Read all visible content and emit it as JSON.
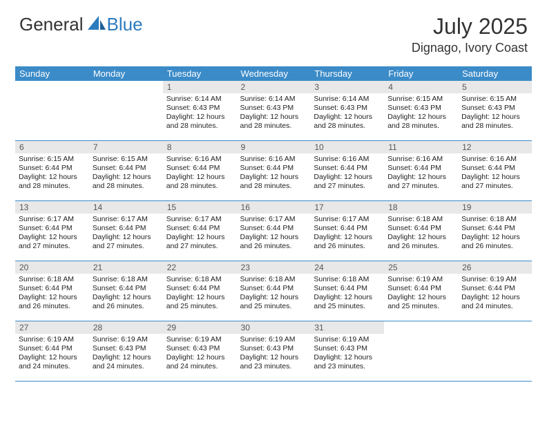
{
  "logo": {
    "text_general": "General",
    "text_blue": "Blue"
  },
  "title": "July 2025",
  "location": "Dignago, Ivory Coast",
  "colors": {
    "header_bg": "#3b8bc8",
    "header_text": "#ffffff",
    "daynum_bg": "#e8e8e8",
    "daynum_text": "#555555",
    "row_divider": "#3b8bc8",
    "logo_blue": "#2b7bbf",
    "body_text": "#222222",
    "page_bg": "#ffffff"
  },
  "typography": {
    "title_fontsize": 32,
    "location_fontsize": 18,
    "header_fontsize": 13,
    "daynum_fontsize": 12,
    "cell_fontsize": 10.5
  },
  "day_headers": [
    "Sunday",
    "Monday",
    "Tuesday",
    "Wednesday",
    "Thursday",
    "Friday",
    "Saturday"
  ],
  "weeks": [
    [
      {
        "blank": true
      },
      {
        "blank": true
      },
      {
        "num": "1",
        "sunrise": "Sunrise: 6:14 AM",
        "sunset": "Sunset: 6:43 PM",
        "daylight": "Daylight: 12 hours and 28 minutes."
      },
      {
        "num": "2",
        "sunrise": "Sunrise: 6:14 AM",
        "sunset": "Sunset: 6:43 PM",
        "daylight": "Daylight: 12 hours and 28 minutes."
      },
      {
        "num": "3",
        "sunrise": "Sunrise: 6:14 AM",
        "sunset": "Sunset: 6:43 PM",
        "daylight": "Daylight: 12 hours and 28 minutes."
      },
      {
        "num": "4",
        "sunrise": "Sunrise: 6:15 AM",
        "sunset": "Sunset: 6:43 PM",
        "daylight": "Daylight: 12 hours and 28 minutes."
      },
      {
        "num": "5",
        "sunrise": "Sunrise: 6:15 AM",
        "sunset": "Sunset: 6:43 PM",
        "daylight": "Daylight: 12 hours and 28 minutes."
      }
    ],
    [
      {
        "num": "6",
        "sunrise": "Sunrise: 6:15 AM",
        "sunset": "Sunset: 6:44 PM",
        "daylight": "Daylight: 12 hours and 28 minutes."
      },
      {
        "num": "7",
        "sunrise": "Sunrise: 6:15 AM",
        "sunset": "Sunset: 6:44 PM",
        "daylight": "Daylight: 12 hours and 28 minutes."
      },
      {
        "num": "8",
        "sunrise": "Sunrise: 6:16 AM",
        "sunset": "Sunset: 6:44 PM",
        "daylight": "Daylight: 12 hours and 28 minutes."
      },
      {
        "num": "9",
        "sunrise": "Sunrise: 6:16 AM",
        "sunset": "Sunset: 6:44 PM",
        "daylight": "Daylight: 12 hours and 28 minutes."
      },
      {
        "num": "10",
        "sunrise": "Sunrise: 6:16 AM",
        "sunset": "Sunset: 6:44 PM",
        "daylight": "Daylight: 12 hours and 27 minutes."
      },
      {
        "num": "11",
        "sunrise": "Sunrise: 6:16 AM",
        "sunset": "Sunset: 6:44 PM",
        "daylight": "Daylight: 12 hours and 27 minutes."
      },
      {
        "num": "12",
        "sunrise": "Sunrise: 6:16 AM",
        "sunset": "Sunset: 6:44 PM",
        "daylight": "Daylight: 12 hours and 27 minutes."
      }
    ],
    [
      {
        "num": "13",
        "sunrise": "Sunrise: 6:17 AM",
        "sunset": "Sunset: 6:44 PM",
        "daylight": "Daylight: 12 hours and 27 minutes."
      },
      {
        "num": "14",
        "sunrise": "Sunrise: 6:17 AM",
        "sunset": "Sunset: 6:44 PM",
        "daylight": "Daylight: 12 hours and 27 minutes."
      },
      {
        "num": "15",
        "sunrise": "Sunrise: 6:17 AM",
        "sunset": "Sunset: 6:44 PM",
        "daylight": "Daylight: 12 hours and 27 minutes."
      },
      {
        "num": "16",
        "sunrise": "Sunrise: 6:17 AM",
        "sunset": "Sunset: 6:44 PM",
        "daylight": "Daylight: 12 hours and 26 minutes."
      },
      {
        "num": "17",
        "sunrise": "Sunrise: 6:17 AM",
        "sunset": "Sunset: 6:44 PM",
        "daylight": "Daylight: 12 hours and 26 minutes."
      },
      {
        "num": "18",
        "sunrise": "Sunrise: 6:18 AM",
        "sunset": "Sunset: 6:44 PM",
        "daylight": "Daylight: 12 hours and 26 minutes."
      },
      {
        "num": "19",
        "sunrise": "Sunrise: 6:18 AM",
        "sunset": "Sunset: 6:44 PM",
        "daylight": "Daylight: 12 hours and 26 minutes."
      }
    ],
    [
      {
        "num": "20",
        "sunrise": "Sunrise: 6:18 AM",
        "sunset": "Sunset: 6:44 PM",
        "daylight": "Daylight: 12 hours and 26 minutes."
      },
      {
        "num": "21",
        "sunrise": "Sunrise: 6:18 AM",
        "sunset": "Sunset: 6:44 PM",
        "daylight": "Daylight: 12 hours and 26 minutes."
      },
      {
        "num": "22",
        "sunrise": "Sunrise: 6:18 AM",
        "sunset": "Sunset: 6:44 PM",
        "daylight": "Daylight: 12 hours and 25 minutes."
      },
      {
        "num": "23",
        "sunrise": "Sunrise: 6:18 AM",
        "sunset": "Sunset: 6:44 PM",
        "daylight": "Daylight: 12 hours and 25 minutes."
      },
      {
        "num": "24",
        "sunrise": "Sunrise: 6:18 AM",
        "sunset": "Sunset: 6:44 PM",
        "daylight": "Daylight: 12 hours and 25 minutes."
      },
      {
        "num": "25",
        "sunrise": "Sunrise: 6:19 AM",
        "sunset": "Sunset: 6:44 PM",
        "daylight": "Daylight: 12 hours and 25 minutes."
      },
      {
        "num": "26",
        "sunrise": "Sunrise: 6:19 AM",
        "sunset": "Sunset: 6:44 PM",
        "daylight": "Daylight: 12 hours and 24 minutes."
      }
    ],
    [
      {
        "num": "27",
        "sunrise": "Sunrise: 6:19 AM",
        "sunset": "Sunset: 6:44 PM",
        "daylight": "Daylight: 12 hours and 24 minutes."
      },
      {
        "num": "28",
        "sunrise": "Sunrise: 6:19 AM",
        "sunset": "Sunset: 6:43 PM",
        "daylight": "Daylight: 12 hours and 24 minutes."
      },
      {
        "num": "29",
        "sunrise": "Sunrise: 6:19 AM",
        "sunset": "Sunset: 6:43 PM",
        "daylight": "Daylight: 12 hours and 24 minutes."
      },
      {
        "num": "30",
        "sunrise": "Sunrise: 6:19 AM",
        "sunset": "Sunset: 6:43 PM",
        "daylight": "Daylight: 12 hours and 23 minutes."
      },
      {
        "num": "31",
        "sunrise": "Sunrise: 6:19 AM",
        "sunset": "Sunset: 6:43 PM",
        "daylight": "Daylight: 12 hours and 23 minutes."
      },
      {
        "blank": true
      },
      {
        "blank": true
      }
    ]
  ]
}
